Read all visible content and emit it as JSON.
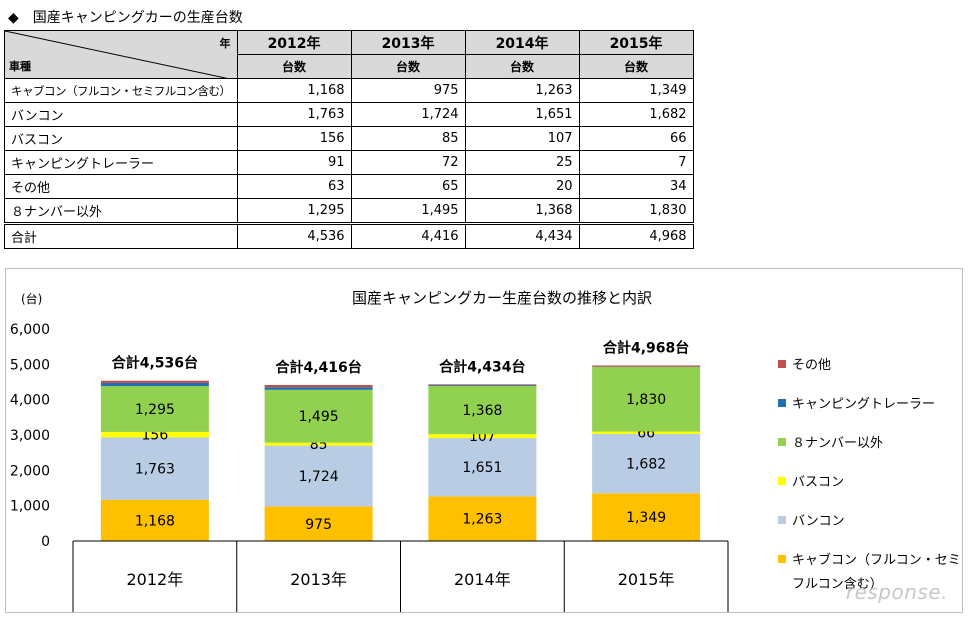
{
  "table": {
    "title": "◆　国産キャンピングカーの生産台数",
    "corner_year": "年",
    "corner_type": "車種",
    "years": [
      "2012年",
      "2013年",
      "2014年",
      "2015年"
    ],
    "sub_header": "台数",
    "rows": [
      {
        "label": "キャブコン（フルコン・セミフルコン含む）",
        "values": [
          "1,168",
          "975",
          "1,263",
          "1,349"
        ]
      },
      {
        "label": "バンコン",
        "values": [
          "1,763",
          "1,724",
          "1,651",
          "1,682"
        ]
      },
      {
        "label": "バスコン",
        "values": [
          "156",
          "85",
          "107",
          "66"
        ]
      },
      {
        "label": "キャンピングトレーラー",
        "values": [
          "91",
          "72",
          "25",
          "7"
        ]
      },
      {
        "label": "その他",
        "values": [
          "63",
          "65",
          "20",
          "34"
        ]
      },
      {
        "label": "８ナンバー以外",
        "values": [
          "1,295",
          "1,495",
          "1,368",
          "1,830"
        ]
      }
    ],
    "total": {
      "label": "合計",
      "values": [
        "4,536",
        "4,416",
        "4,434",
        "4,968"
      ]
    }
  },
  "chart_data": {
    "type": "bar",
    "stacked": true,
    "title": "国産キャンピングカー生産台数の推移と内訳",
    "ylabel": "(台)",
    "ylim": [
      0,
      6000
    ],
    "yticks": [
      "0",
      "1,000",
      "2,000",
      "3,000",
      "4,000",
      "5,000",
      "6,000"
    ],
    "categories": [
      "2012年",
      "2013年",
      "2014年",
      "2015年"
    ],
    "totals": [
      "合計4,536台",
      "合計4,416台",
      "合計4,434台",
      "合計4,968台"
    ],
    "legend_position": "right",
    "series": [
      {
        "name": "キャブコン（フルコン・セミフルコン含む）",
        "color": "#ffc000",
        "values": [
          1168,
          975,
          1263,
          1349
        ],
        "labels": [
          "1,168",
          "975",
          "1,263",
          "1,349"
        ]
      },
      {
        "name": "バンコン",
        "color": "#b8cce4",
        "values": [
          1763,
          1724,
          1651,
          1682
        ],
        "labels": [
          "1,763",
          "1,724",
          "1,651",
          "1,682"
        ]
      },
      {
        "name": "バスコン",
        "color": "#ffff00",
        "values": [
          156,
          85,
          107,
          66
        ],
        "labels": [
          "156",
          "85",
          "107",
          "66"
        ]
      },
      {
        "name": "８ナンバー以外",
        "color": "#92d050",
        "values": [
          1295,
          1495,
          1368,
          1830
        ],
        "labels": [
          "1,295",
          "1,495",
          "1,368",
          "1,830"
        ]
      },
      {
        "name": "キャンピングトレーラー",
        "color": "#1f6fb4",
        "values": [
          91,
          72,
          25,
          7
        ],
        "labels": []
      },
      {
        "name": "その他",
        "color": "#c0504d",
        "values": [
          63,
          65,
          20,
          34
        ],
        "labels": []
      }
    ],
    "legend_order": [
      "その他",
      "キャンピングトレーラー",
      "８ナンバー以外",
      "バスコン",
      "バンコン",
      "キャブコン（フルコン・セミフルコン含む）"
    ],
    "legend_lines": {
      "キャブコン（フルコン・セミフルコン含む）": [
        "キャブコン（フルコン・セミ",
        "フルコン含む）"
      ]
    }
  },
  "watermark": "response."
}
